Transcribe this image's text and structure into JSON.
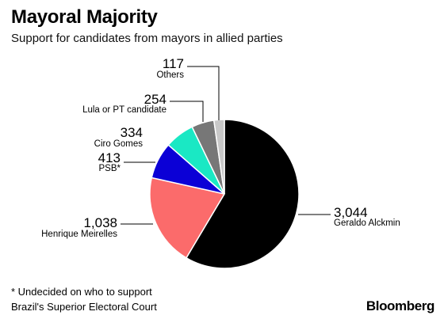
{
  "title": "Mayoral Majority",
  "subtitle": "Support for candidates from mayors in allied parties",
  "footnote": "* Undecided on who to support",
  "source": "Brazil's Superior Electoral Court",
  "brand": "Bloomberg",
  "chart_data": {
    "type": "pie",
    "start": "12 o'clock, clockwise",
    "slices": [
      {
        "label": "Geraldo Alckmin",
        "value": 3044,
        "value_text": "3,044",
        "color": "#000000"
      },
      {
        "label": "Henrique Meirelles",
        "value": 1038,
        "value_text": "1,038",
        "color": "#fb6b6b"
      },
      {
        "label": "PSB*",
        "value": 413,
        "value_text": "413",
        "color": "#0b00d6"
      },
      {
        "label": "Ciro Gomes",
        "value": 334,
        "value_text": "334",
        "color": "#1ae8c4"
      },
      {
        "label": "Lula or PT candidate",
        "value": 254,
        "value_text": "254",
        "color": "#777777"
      },
      {
        "label": "Others",
        "value": 117,
        "value_text": "117",
        "color": "#c8c8c8"
      }
    ]
  }
}
